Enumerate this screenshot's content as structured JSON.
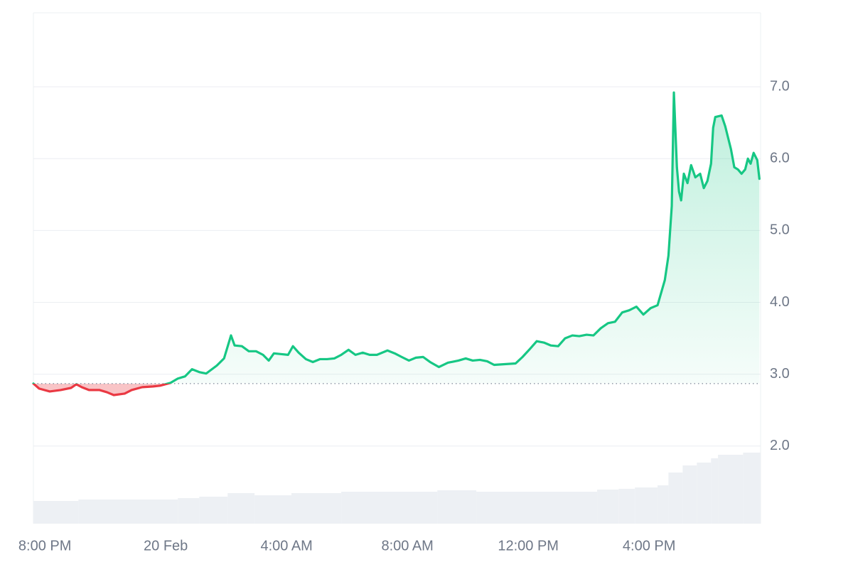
{
  "chart_data": {
    "type": "line",
    "baseline": 2.87,
    "xlim": [
      -0.38,
      23.69
    ],
    "ylim": [
      0.92,
      8.03
    ],
    "y2lim": [
      0,
      100
    ],
    "grid": true,
    "up_color": "#16c784",
    "down_color": "#ea3943",
    "xticks": [
      {
        "value": 0,
        "label": "8:00 PM"
      },
      {
        "value": 4,
        "label": "20 Feb"
      },
      {
        "value": 8,
        "label": "4:00 AM"
      },
      {
        "value": 12,
        "label": "8:00 AM"
      },
      {
        "value": 16,
        "label": "12:00 PM"
      },
      {
        "value": 20,
        "label": "4:00 PM"
      }
    ],
    "yticks": [
      {
        "value": 2,
        "label": "2.0"
      },
      {
        "value": 3,
        "label": "3.0"
      },
      {
        "value": 4,
        "label": "4.0"
      },
      {
        "value": 5,
        "label": "5.0"
      },
      {
        "value": 6,
        "label": "6.0"
      },
      {
        "value": 7,
        "label": "7.0"
      }
    ],
    "x": [
      -0.38,
      -0.19,
      0.16,
      0.52,
      0.87,
      1.04,
      1.22,
      1.46,
      1.81,
      2.05,
      2.28,
      2.64,
      2.87,
      3.22,
      3.58,
      3.81,
      4.16,
      4.4,
      4.64,
      4.87,
      5.11,
      5.34,
      5.69,
      5.93,
      6.16,
      6.28,
      6.52,
      6.75,
      6.99,
      7.22,
      7.41,
      7.58,
      7.81,
      8.05,
      8.21,
      8.4,
      8.64,
      8.87,
      9.11,
      9.34,
      9.58,
      9.81,
      10.05,
      10.28,
      10.52,
      10.75,
      10.99,
      11.34,
      11.58,
      11.81,
      12.05,
      12.28,
      12.52,
      12.75,
      13.04,
      13.34,
      13.69,
      13.93,
      14.16,
      14.4,
      14.64,
      14.87,
      15.22,
      15.58,
      15.81,
      16.05,
      16.28,
      16.52,
      16.75,
      16.99,
      17.22,
      17.46,
      17.69,
      17.93,
      18.16,
      18.4,
      18.64,
      18.87,
      19.11,
      19.34,
      19.58,
      19.81,
      20.05,
      20.28,
      20.52,
      20.64,
      20.75,
      20.82,
      20.92,
      20.99,
      21.06,
      21.15,
      21.27,
      21.39,
      21.53,
      21.69,
      21.81,
      21.93,
      22.05,
      22.12,
      22.19,
      22.4,
      22.52,
      22.71,
      22.82,
      22.94,
      23.06,
      23.18,
      23.27,
      23.36,
      23.46,
      23.58,
      23.65
    ],
    "series": [
      {
        "values": [
          2.87,
          2.8,
          2.76,
          2.78,
          2.81,
          2.86,
          2.82,
          2.78,
          2.78,
          2.75,
          2.71,
          2.73,
          2.78,
          2.82,
          2.83,
          2.84,
          2.88,
          2.94,
          2.97,
          3.07,
          3.03,
          3.01,
          3.12,
          3.22,
          3.54,
          3.4,
          3.39,
          3.32,
          3.32,
          3.27,
          3.19,
          3.29,
          3.28,
          3.27,
          3.39,
          3.3,
          3.21,
          3.17,
          3.21,
          3.21,
          3.22,
          3.27,
          3.34,
          3.27,
          3.3,
          3.27,
          3.27,
          3.33,
          3.29,
          3.24,
          3.19,
          3.23,
          3.24,
          3.17,
          3.1,
          3.16,
          3.19,
          3.22,
          3.19,
          3.2,
          3.18,
          3.13,
          3.14,
          3.15,
          3.24,
          3.35,
          3.46,
          3.44,
          3.4,
          3.39,
          3.5,
          3.54,
          3.53,
          3.55,
          3.54,
          3.64,
          3.71,
          3.73,
          3.86,
          3.89,
          3.94,
          3.83,
          3.92,
          3.96,
          4.31,
          4.65,
          5.34,
          6.92,
          5.88,
          5.54,
          5.42,
          5.79,
          5.66,
          5.91,
          5.74,
          5.79,
          5.59,
          5.69,
          5.93,
          6.43,
          6.58,
          6.6,
          6.45,
          6.13,
          5.88,
          5.85,
          5.79,
          5.85,
          6.0,
          5.93,
          6.08,
          5.98,
          5.72
        ]
      },
      {
        "axis": "y2",
        "color": "#edf0f4",
        "x": [
          -0.38,
          1.11,
          4.4,
          5.11,
          6.05,
          6.94,
          8.16,
          9.81,
          12.99,
          14.28,
          18.28,
          18.99,
          19.53,
          20.28,
          20.64,
          21.11,
          21.58,
          22.05,
          22.28,
          23.11
        ],
        "values": [
          4.45,
          4.73,
          5.01,
          5.29,
          5.98,
          5.56,
          5.98,
          6.26,
          6.54,
          6.26,
          6.68,
          6.82,
          7.09,
          7.51,
          10.01,
          11.4,
          11.96,
          12.8,
          13.49,
          13.91
        ]
      }
    ]
  }
}
